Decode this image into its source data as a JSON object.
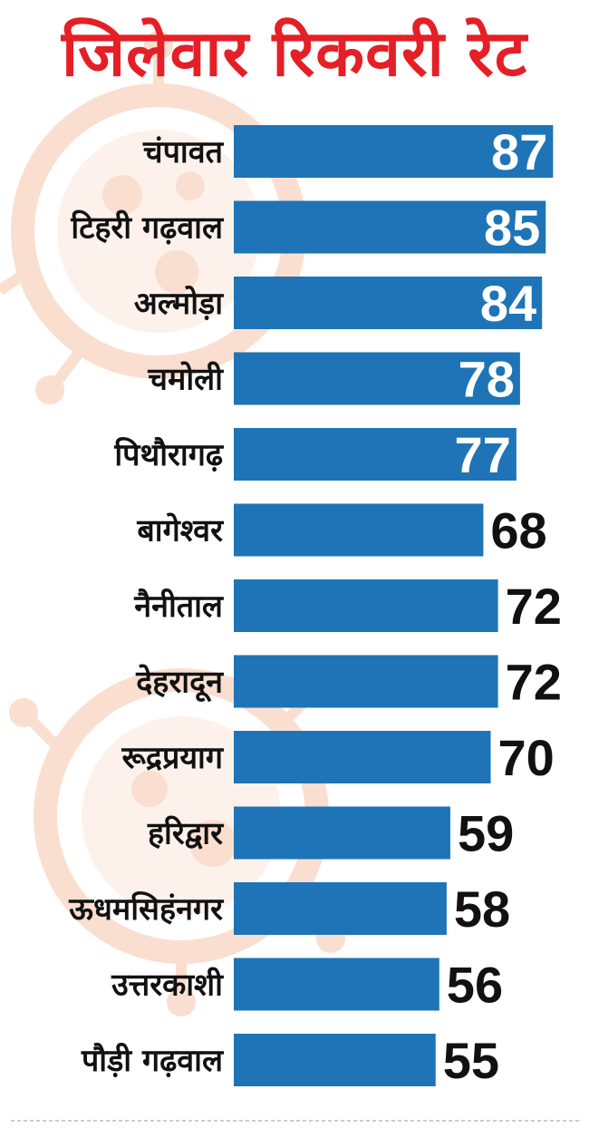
{
  "chart_data": {
    "type": "bar",
    "orientation": "horizontal",
    "title": "जिलेवार रिकवरी रेट",
    "categories": [
      "चंपावत",
      "टिहरी गढ़वाल",
      "अल्मोड़ा",
      "चमोली",
      "पिथौरागढ़",
      "बागेश्वर",
      "नैनीताल",
      "देहरादून",
      "रूद्रप्रयाग",
      "हरिद्वार",
      "ऊधमसिहंनगर",
      "उत्तरकाशी",
      "पौड़ी गढ़वाल"
    ],
    "values": [
      87,
      85,
      84,
      78,
      77,
      68,
      72,
      72,
      70,
      59,
      58,
      56,
      55
    ],
    "value_labels": [
      "87",
      "85",
      "84",
      "78",
      "77",
      "68",
      "72",
      "72",
      "70",
      "59",
      "58",
      "56",
      "55"
    ],
    "label_inside_bar": [
      true,
      true,
      true,
      true,
      true,
      false,
      false,
      false,
      false,
      false,
      false,
      false,
      false
    ],
    "colors": {
      "bar": "#1e74b6",
      "title": "#e41f26",
      "label_inside": "#ffffff",
      "label_outside": "#111111",
      "watermark": "#f4b896"
    },
    "grid": false,
    "legend": "none"
  }
}
